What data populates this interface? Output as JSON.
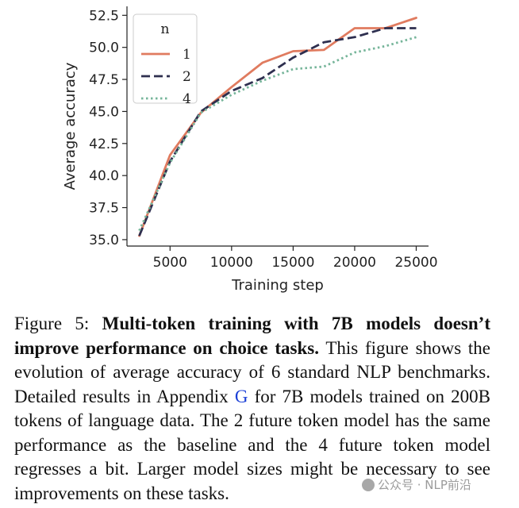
{
  "chart_data": {
    "type": "line",
    "x": [
      2500,
      5000,
      7500,
      10000,
      12500,
      15000,
      17500,
      20000,
      22500,
      25000
    ],
    "series": [
      {
        "name": "1",
        "color": "#e07b5f",
        "style": "solid",
        "values": [
          35.3,
          41.6,
          44.9,
          46.9,
          48.8,
          49.7,
          49.8,
          51.5,
          51.5,
          52.3
        ]
      },
      {
        "name": "2",
        "color": "#2e2f4f",
        "style": "dashed",
        "values": [
          35.3,
          41.1,
          45.0,
          46.6,
          47.6,
          49.2,
          50.4,
          50.8,
          51.5,
          51.5
        ]
      },
      {
        "name": "4",
        "color": "#76b59a",
        "style": "dotted",
        "values": [
          35.7,
          41.0,
          44.9,
          46.3,
          47.4,
          48.3,
          48.5,
          49.6,
          50.1,
          50.8
        ]
      }
    ],
    "xlabel": "Training step",
    "ylabel": "Average accuracy",
    "xticks": [
      5000,
      10000,
      15000,
      20000,
      25000
    ],
    "yticks": [
      35.0,
      37.5,
      40.0,
      42.5,
      45.0,
      47.5,
      50.0,
      52.5
    ],
    "xtick_labels": [
      "5000",
      "10000",
      "15000",
      "20000",
      "25000"
    ],
    "ytick_labels": [
      "35.0",
      "37.5",
      "40.0",
      "42.5",
      "45.0",
      "47.5",
      "50.0",
      "52.5"
    ],
    "xlim": [
      1500,
      26000
    ],
    "ylim": [
      34.5,
      53.2
    ],
    "legend_title": "n",
    "legend_position": "top-left",
    "grid": false
  },
  "caption": {
    "label": "Figure 5:",
    "bold": "Multi-token training with 7B models doesn’t improve performance on choice tasks.",
    "text_before_ref": "This figure shows the evolution of average accuracy of 6 standard NLP benchmarks. Detailed results in Appendix",
    "ref": "G",
    "text_after_ref": "for 7B models trained on 200B tokens of language data. The 2 future token model has the same performance as the baseline and the 4 future token model regresses a bit. Larger model sizes might be necessary to see improvements on these tasks."
  },
  "watermark": {
    "text": "公众号 · NLP前沿"
  }
}
